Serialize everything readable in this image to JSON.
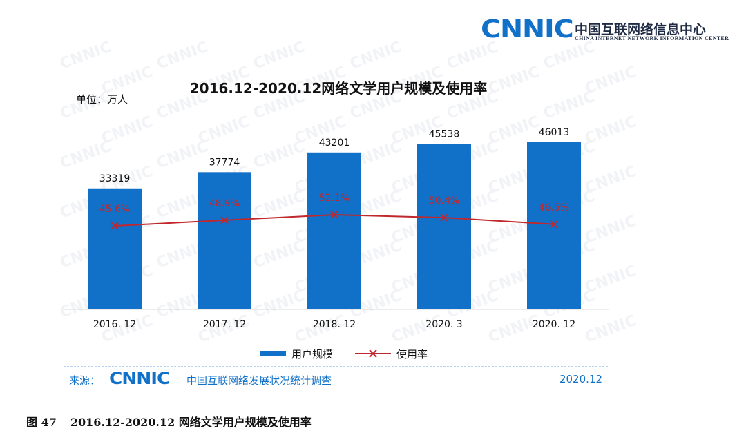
{
  "header": {
    "logo_text": "CNNIC",
    "org_name_cn": "中国互联网络信息中心",
    "org_name_en": "CHINA INTERNET NETWORK INFORMATION CENTER"
  },
  "colors": {
    "bar": "#1170c8",
    "line": "#c0282d",
    "rate_label": "#c0282d",
    "accent": "#1170c8"
  },
  "chart_data": {
    "type": "bar",
    "title": "2016.12-2020.12网络文学用户规模及使用率",
    "unit": "单位：万人",
    "categories": [
      "2016. 12",
      "2017. 12",
      "2018. 12",
      "2020. 3",
      "2020. 12"
    ],
    "series": [
      {
        "name": "用户规模",
        "type": "bar",
        "values": [
          33319,
          37774,
          43201,
          45538,
          46013
        ],
        "labels": [
          "33319",
          "37774",
          "43201",
          "45538",
          "46013"
        ]
      },
      {
        "name": "使用率",
        "type": "line",
        "values": [
          45.6,
          48.9,
          52.1,
          50.4,
          46.5
        ],
        "labels": [
          "45.6%",
          "48.9%",
          "52.1%",
          "50.4%",
          "46.5%"
        ]
      }
    ],
    "ylim_bar": [
      0,
      55000
    ],
    "ylim_line": [
      0,
      100
    ],
    "legend_position": "bottom"
  },
  "source": {
    "prefix": "来源：",
    "logo_text": "CNNIC",
    "org": "中国互联网络发展状况统计调查",
    "date": "2020.12"
  },
  "caption": {
    "figure_no": "图 47",
    "text": "2016.12-2020.12 网络文学用户规模及使用率"
  }
}
